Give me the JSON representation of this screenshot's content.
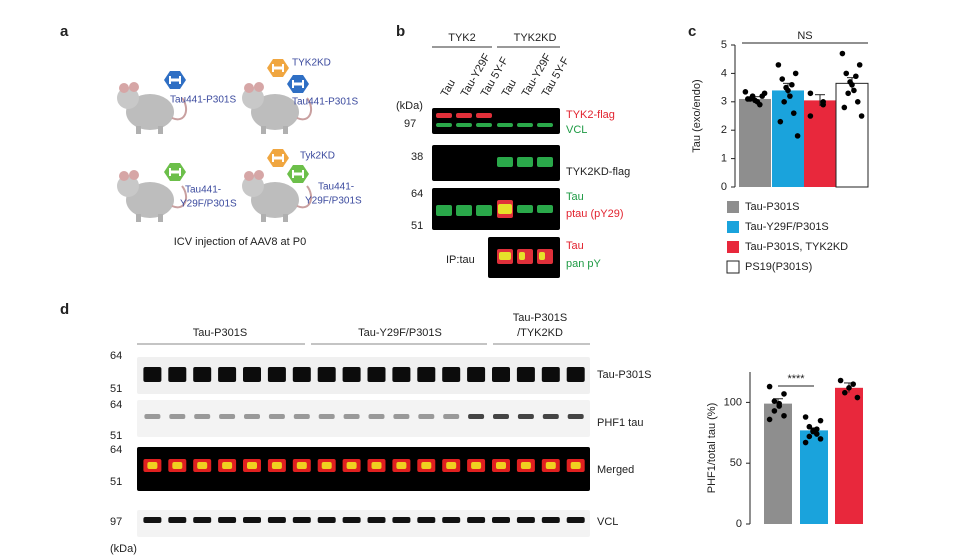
{
  "panels": {
    "a": {
      "letter": "a",
      "mice": [
        {
          "vector": [
            "Tau441-P301S"
          ]
        },
        {
          "extra": "TYK2KD",
          "vector": [
            "Tau441-P301S"
          ]
        },
        {
          "vector": [
            "Tau441-",
            "Y29F/P301S"
          ]
        },
        {
          "extra": "Tyk2KD",
          "vector": [
            "Tau441-",
            "Y29F/P301S"
          ]
        }
      ],
      "caption": "ICV injection of AAV8 at P0"
    },
    "b": {
      "letter": "b",
      "groups": [
        "TYK2",
        "TYK2KD"
      ],
      "lanes": [
        "Tau",
        "Tau-Y29F",
        "Tau 5Y-F",
        "Tau",
        "Tau-Y29F",
        "Tau 5Y-F"
      ],
      "unit": "(kDa)",
      "markers": [
        97,
        38,
        64,
        51
      ],
      "row_labels": [
        "TYK2-flag",
        "VCL",
        "TYK2KD-flag",
        "Tau",
        "ptau (pY29)",
        "Tau",
        "pan pY"
      ],
      "ip": "IP:tau"
    },
    "c": {
      "letter": "c"
    },
    "d": {
      "letter": "d",
      "groups": [
        [
          "Tau-P301S"
        ],
        [
          "Tau-Y29F/P301S"
        ],
        [
          "Tau-P301S",
          "/TYK2KD"
        ]
      ],
      "unit": "(kDa)",
      "markers": [
        64,
        51,
        64,
        51,
        64,
        51,
        97
      ],
      "row_labels": [
        "Tau-P301S",
        "PHF1 tau",
        "Merged",
        "VCL"
      ]
    }
  },
  "chart_data": [
    {
      "type": "bar",
      "ylabel": "Tau (exo/endo)",
      "ylim": [
        0,
        5
      ],
      "yticks": [
        0,
        1,
        2,
        3,
        4,
        5
      ],
      "annotation": "NS",
      "legend": "bottom",
      "categories": [
        null
      ],
      "series": [
        {
          "name": "Tau-P301S",
          "color": "#8e8e8e",
          "values": [
            3.1
          ],
          "errors": [
            0.08
          ],
          "points": [
            3.35,
            3.2,
            3.1,
            3.0,
            3.05,
            3.2,
            2.9,
            3.1,
            3.3
          ]
        },
        {
          "name": "Tau-Y29F/P301S",
          "color": "#1aa3dc",
          "values": [
            3.4
          ],
          "errors": [
            0.25
          ],
          "points": [
            4.3,
            4.0,
            3.8,
            3.6,
            3.5,
            3.4,
            3.2,
            3.0,
            2.6,
            2.3,
            1.8
          ]
        },
        {
          "name": "Tau-P301S, TYK2KD",
          "color": "#e8283c",
          "values": [
            3.05
          ],
          "errors": [
            0.2
          ],
          "points": [
            3.3,
            3.0,
            2.9,
            2.5
          ]
        },
        {
          "name": "PS19(P301S)",
          "color": "#ffffff",
          "values": [
            3.65
          ],
          "errors": [
            0.2
          ],
          "points": [
            4.7,
            4.3,
            4.0,
            3.9,
            3.7,
            3.6,
            3.4,
            3.3,
            3.0,
            2.8,
            2.5
          ]
        }
      ]
    },
    {
      "type": "bar",
      "ylabel": "PHF1/total tau (%)",
      "ylim": [
        0,
        125
      ],
      "yticks": [
        0,
        50,
        100
      ],
      "annotation": "****",
      "categories": [
        null
      ],
      "series": [
        {
          "color": "#8e8e8e",
          "values": [
            99
          ],
          "errors": [
            4
          ],
          "points": [
            113,
            107,
            101,
            99,
            97,
            93,
            89,
            86
          ]
        },
        {
          "color": "#1aa3dc",
          "values": [
            77
          ],
          "errors": [
            2
          ],
          "points": [
            88,
            85,
            80,
            78,
            77,
            76,
            74,
            72,
            70,
            67
          ]
        },
        {
          "color": "#e8283c",
          "values": [
            112
          ],
          "errors": [
            4
          ],
          "points": [
            118,
            115,
            112,
            108,
            104
          ]
        }
      ]
    }
  ]
}
